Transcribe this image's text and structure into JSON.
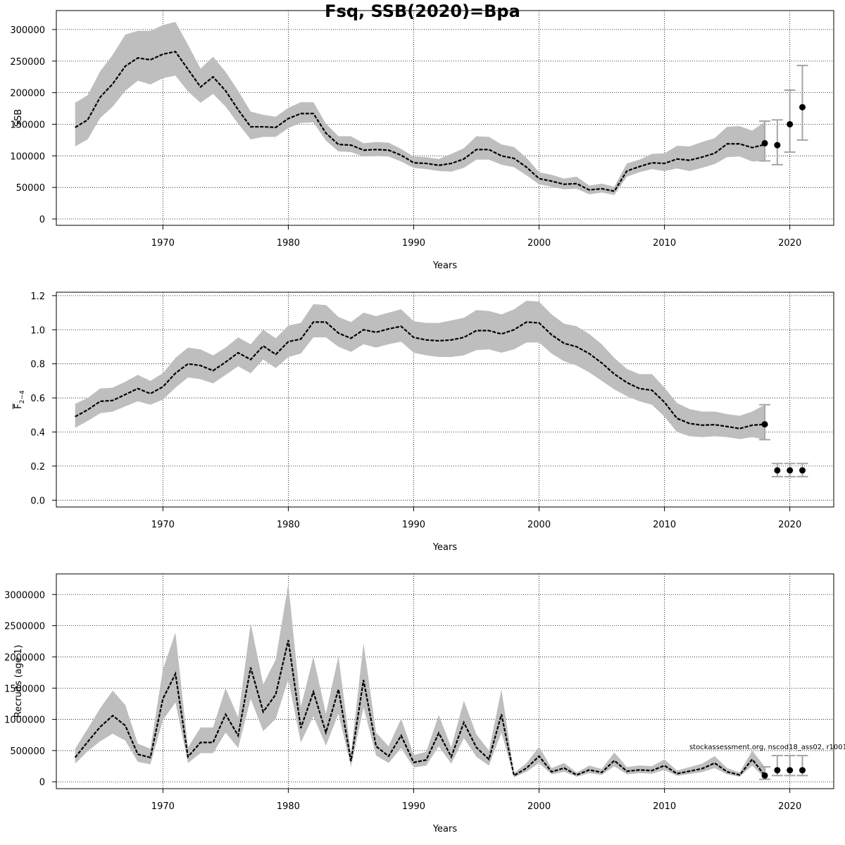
{
  "title": "Fsq, SSB(2020)=Bpa",
  "footnote": "stockassessment.org, nscod18_ass02, r10016",
  "colors": {
    "band": "#bebebe",
    "line": "#000000",
    "grid": "#000000",
    "errorbar": "#a6a6a6",
    "point": "#000000"
  },
  "chart_data": [
    {
      "type": "line",
      "panel": "ssb",
      "xlabel": "Years",
      "ylabel": "SSB",
      "xlim": [
        1961.5,
        2023.5
      ],
      "ylim": [
        -10000,
        330000
      ],
      "xticks": [
        1970,
        1980,
        1990,
        2000,
        2010,
        2020
      ],
      "yticks": [
        0,
        50000,
        100000,
        150000,
        200000,
        250000,
        300000
      ],
      "grid": true,
      "x": [
        1963,
        1964,
        1965,
        1966,
        1967,
        1968,
        1969,
        1970,
        1971,
        1972,
        1973,
        1974,
        1975,
        1976,
        1977,
        1978,
        1979,
        1980,
        1981,
        1982,
        1983,
        1984,
        1985,
        1986,
        1987,
        1988,
        1989,
        1990,
        1991,
        1992,
        1993,
        1994,
        1995,
        1996,
        1997,
        1998,
        1999,
        2000,
        2001,
        2002,
        2003,
        2004,
        2005,
        2006,
        2007,
        2008,
        2009,
        2010,
        2011,
        2012,
        2013,
        2014,
        2015,
        2016,
        2017,
        2018
      ],
      "estimate": [
        145000,
        157000,
        193000,
        214000,
        242000,
        255000,
        252000,
        261000,
        265000,
        237000,
        209000,
        225000,
        203000,
        173000,
        146000,
        146000,
        145000,
        159000,
        167000,
        167000,
        136000,
        118000,
        117000,
        109000,
        110000,
        109000,
        101000,
        89000,
        88000,
        85000,
        88000,
        95000,
        110000,
        110000,
        100000,
        96000,
        82000,
        64000,
        60000,
        55000,
        56000,
        46000,
        48000,
        44000,
        76000,
        83000,
        89000,
        88000,
        95000,
        93000,
        98000,
        104000,
        119000,
        119000,
        113000,
        118000
      ],
      "lower": [
        115000,
        126000,
        160000,
        178000,
        203000,
        219000,
        213000,
        223000,
        227000,
        202000,
        184000,
        198000,
        178000,
        151000,
        126000,
        130000,
        130000,
        144000,
        152000,
        153000,
        124000,
        107000,
        106000,
        99000,
        100000,
        99000,
        91000,
        81000,
        79000,
        76000,
        75000,
        81000,
        94000,
        94000,
        86000,
        82000,
        69000,
        55000,
        51000,
        47000,
        48000,
        39000,
        42000,
        38000,
        67000,
        74000,
        79000,
        76000,
        80000,
        76000,
        81000,
        87000,
        98000,
        99000,
        91000,
        92000
      ],
      "upper": [
        184000,
        196000,
        234000,
        260000,
        292000,
        298000,
        298000,
        307000,
        312000,
        276000,
        238000,
        257000,
        233000,
        203000,
        170000,
        165000,
        162000,
        176000,
        185000,
        185000,
        151000,
        131000,
        131000,
        120000,
        122000,
        121000,
        111000,
        99000,
        98000,
        95000,
        103000,
        112000,
        131000,
        130000,
        118000,
        114000,
        97000,
        74000,
        70000,
        64000,
        67000,
        53000,
        56000,
        51000,
        88000,
        94000,
        103000,
        104000,
        116000,
        115000,
        122000,
        128000,
        146000,
        147000,
        140000,
        154000
      ],
      "projection": {
        "x": [
          2018,
          2019,
          2020,
          2021
        ],
        "values": [
          120000,
          117000,
          150000,
          177000
        ],
        "lower": [
          92000,
          86000,
          106000,
          125000
        ],
        "upper": [
          155000,
          157000,
          204000,
          243000
        ]
      }
    },
    {
      "type": "line",
      "panel": "fbar",
      "xlabel": "Years",
      "ylabel": "F̄2−4",
      "ylabel_main": "F",
      "ylabel_sub": "2−4",
      "xlim": [
        1961.5,
        2023.5
      ],
      "ylim": [
        -0.04,
        1.22
      ],
      "xticks": [
        1970,
        1980,
        1990,
        2000,
        2010,
        2020
      ],
      "yticks": [
        0.0,
        0.2,
        0.4,
        0.6,
        0.8,
        1.0,
        1.2
      ],
      "ytick_labels": [
        "0.0",
        "0.2",
        "0.4",
        "0.6",
        "0.8",
        "1.0",
        "1.2"
      ],
      "grid": true,
      "x": [
        1963,
        1964,
        1965,
        1966,
        1967,
        1968,
        1969,
        1970,
        1971,
        1972,
        1973,
        1974,
        1975,
        1976,
        1977,
        1978,
        1979,
        1980,
        1981,
        1982,
        1983,
        1984,
        1985,
        1986,
        1987,
        1988,
        1989,
        1990,
        1991,
        1992,
        1993,
        1994,
        1995,
        1996,
        1997,
        1998,
        1999,
        2000,
        2001,
        2002,
        2003,
        2004,
        2005,
        2006,
        2007,
        2008,
        2009,
        2010,
        2011,
        2012,
        2013,
        2014,
        2015,
        2016,
        2017,
        2018
      ],
      "estimate": [
        0.49,
        0.53,
        0.58,
        0.585,
        0.62,
        0.655,
        0.625,
        0.665,
        0.745,
        0.8,
        0.79,
        0.76,
        0.81,
        0.865,
        0.825,
        0.905,
        0.855,
        0.93,
        0.945,
        1.045,
        1.045,
        0.98,
        0.95,
        1.0,
        0.985,
        1.005,
        1.02,
        0.955,
        0.94,
        0.935,
        0.94,
        0.955,
        0.995,
        0.995,
        0.975,
        1.0,
        1.045,
        1.04,
        0.97,
        0.92,
        0.9,
        0.86,
        0.805,
        0.74,
        0.69,
        0.655,
        0.645,
        0.575,
        0.48,
        0.45,
        0.44,
        0.443,
        0.432,
        0.42,
        0.44,
        0.445
      ],
      "lower": [
        0.425,
        0.465,
        0.51,
        0.52,
        0.55,
        0.58,
        0.56,
        0.59,
        0.66,
        0.72,
        0.71,
        0.685,
        0.735,
        0.785,
        0.745,
        0.825,
        0.775,
        0.84,
        0.86,
        0.955,
        0.955,
        0.9,
        0.87,
        0.915,
        0.895,
        0.915,
        0.93,
        0.865,
        0.85,
        0.84,
        0.84,
        0.85,
        0.88,
        0.885,
        0.865,
        0.885,
        0.925,
        0.925,
        0.86,
        0.815,
        0.79,
        0.75,
        0.7,
        0.65,
        0.61,
        0.58,
        0.56,
        0.49,
        0.4,
        0.375,
        0.37,
        0.375,
        0.37,
        0.358,
        0.37,
        0.355
      ],
      "upper": [
        0.565,
        0.6,
        0.655,
        0.66,
        0.695,
        0.735,
        0.7,
        0.745,
        0.835,
        0.895,
        0.885,
        0.85,
        0.895,
        0.955,
        0.915,
        1.0,
        0.95,
        1.025,
        1.04,
        1.15,
        1.145,
        1.075,
        1.045,
        1.1,
        1.08,
        1.1,
        1.12,
        1.05,
        1.04,
        1.04,
        1.055,
        1.07,
        1.115,
        1.11,
        1.09,
        1.12,
        1.17,
        1.165,
        1.09,
        1.035,
        1.02,
        0.975,
        0.915,
        0.835,
        0.77,
        0.74,
        0.74,
        0.66,
        0.57,
        0.535,
        0.52,
        0.52,
        0.505,
        0.495,
        0.52,
        0.56
      ],
      "projection": {
        "x": [
          2018,
          2019,
          2020,
          2021
        ],
        "values": [
          0.445,
          0.175,
          0.175,
          0.175
        ],
        "lower": [
          0.355,
          0.138,
          0.138,
          0.138
        ],
        "upper": [
          0.56,
          0.215,
          0.215,
          0.215
        ]
      }
    },
    {
      "type": "line",
      "panel": "recruits",
      "xlabel": "Years",
      "ylabel": "Recruits (age 1)",
      "xlim": [
        1961.5,
        2023.5
      ],
      "ylim": [
        -110000,
        3330000
      ],
      "xticks": [
        1970,
        1980,
        1990,
        2000,
        2010,
        2020
      ],
      "yticks": [
        0,
        500000,
        1000000,
        1500000,
        2000000,
        2500000,
        3000000
      ],
      "grid": true,
      "x": [
        1963,
        1964,
        1965,
        1966,
        1967,
        1968,
        1969,
        1970,
        1971,
        1972,
        1973,
        1974,
        1975,
        1976,
        1977,
        1978,
        1979,
        1980,
        1981,
        1982,
        1983,
        1984,
        1985,
        1986,
        1987,
        1988,
        1989,
        1990,
        1991,
        1992,
        1993,
        1994,
        1995,
        1996,
        1997,
        1998,
        1999,
        2000,
        2001,
        2002,
        2003,
        2004,
        2005,
        2006,
        2007,
        2008,
        2009,
        2010,
        2011,
        2012,
        2013,
        2014,
        2015,
        2016,
        2017,
        2018
      ],
      "estimate": [
        390000,
        640000,
        880000,
        1060000,
        900000,
        440000,
        390000,
        1330000,
        1730000,
        400000,
        630000,
        630000,
        1080000,
        740000,
        1830000,
        1120000,
        1400000,
        2270000,
        860000,
        1440000,
        790000,
        1480000,
        330000,
        1630000,
        570000,
        410000,
        740000,
        310000,
        350000,
        780000,
        400000,
        950000,
        550000,
        360000,
        1080000,
        100000,
        220000,
        410000,
        160000,
        220000,
        110000,
        190000,
        150000,
        340000,
        170000,
        190000,
        180000,
        260000,
        130000,
        170000,
        210000,
        300000,
        160000,
        110000,
        360000,
        100000
      ],
      "lower": [
        290000,
        490000,
        650000,
        770000,
        660000,
        320000,
        280000,
        990000,
        1270000,
        300000,
        460000,
        460000,
        790000,
        540000,
        1330000,
        810000,
        1010000,
        1640000,
        630000,
        1050000,
        580000,
        1090000,
        240000,
        1190000,
        420000,
        300000,
        540000,
        230000,
        260000,
        570000,
        290000,
        700000,
        400000,
        260000,
        790000,
        70000,
        160000,
        300000,
        120000,
        160000,
        80000,
        140000,
        110000,
        250000,
        120000,
        140000,
        130000,
        190000,
        95000,
        125000,
        155000,
        220000,
        120000,
        80000,
        260000,
        60000
      ],
      "upper": [
        530000,
        850000,
        1180000,
        1460000,
        1230000,
        610000,
        530000,
        1800000,
        2390000,
        550000,
        870000,
        870000,
        1500000,
        1030000,
        2540000,
        1560000,
        1960000,
        3170000,
        1200000,
        2000000,
        1090000,
        2010000,
        460000,
        2220000,
        790000,
        570000,
        1010000,
        430000,
        480000,
        1070000,
        550000,
        1300000,
        760000,
        500000,
        1480000,
        140000,
        300000,
        560000,
        220000,
        300000,
        150000,
        260000,
        205000,
        470000,
        235000,
        262000,
        250000,
        360000,
        180000,
        235000,
        290000,
        410000,
        220000,
        150000,
        500000,
        240000
      ],
      "projection": {
        "x": [
          2018,
          2019,
          2020,
          2021
        ],
        "values": [
          100000,
          185000,
          185000,
          185000
        ],
        "lower": [
          40000,
          100000,
          100000,
          100000
        ],
        "upper": [
          240000,
          420000,
          420000,
          420000
        ]
      }
    }
  ]
}
